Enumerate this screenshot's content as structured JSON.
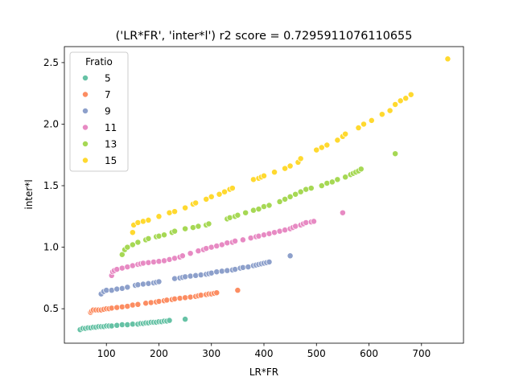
{
  "chart_data": {
    "type": "scatter",
    "title": "('LR*FR', 'inter*l') r2 score = 0.7295911076110655",
    "xlabel": "LR*FR",
    "ylabel": "inter*l",
    "xlim": [
      20,
      780
    ],
    "ylim": [
      0.22,
      2.63
    ],
    "xticks": [
      100,
      200,
      300,
      400,
      500,
      600,
      700
    ],
    "yticks": [
      0.5,
      1.0,
      1.5,
      2.0,
      2.5
    ],
    "xtick_labels": [
      "100",
      "200",
      "300",
      "400",
      "500",
      "600",
      "700"
    ],
    "ytick_labels": [
      "0.5",
      "1.0",
      "1.5",
      "2.0",
      "2.5"
    ],
    "grid": false,
    "legend": {
      "title": "Fratio",
      "placement": "top-left"
    },
    "series": [
      {
        "name": "5",
        "color": "#66c2a5",
        "x": [
          50,
          55,
          60,
          65,
          70,
          75,
          80,
          85,
          90,
          95,
          100,
          105,
          110,
          120,
          130,
          140,
          150,
          160,
          165,
          170,
          175,
          180,
          185,
          190,
          195,
          200,
          205,
          210,
          215,
          220,
          250
        ],
        "y": [
          0.33,
          0.34,
          0.34,
          0.345,
          0.345,
          0.35,
          0.35,
          0.355,
          0.355,
          0.355,
          0.36,
          0.36,
          0.36,
          0.365,
          0.37,
          0.37,
          0.375,
          0.375,
          0.38,
          0.38,
          0.385,
          0.385,
          0.39,
          0.39,
          0.39,
          0.395,
          0.395,
          0.4,
          0.4,
          0.405,
          0.415
        ]
      },
      {
        "name": "7",
        "color": "#fc8d62",
        "x": [
          70,
          72,
          75,
          80,
          85,
          90,
          95,
          100,
          105,
          110,
          120,
          130,
          140,
          150,
          160,
          175,
          185,
          195,
          200,
          210,
          215,
          225,
          230,
          240,
          250,
          260,
          270,
          275,
          280,
          290,
          295,
          300,
          305,
          310,
          350
        ],
        "y": [
          0.47,
          0.48,
          0.49,
          0.49,
          0.49,
          0.49,
          0.495,
          0.5,
          0.5,
          0.505,
          0.51,
          0.515,
          0.52,
          0.53,
          0.535,
          0.545,
          0.55,
          0.555,
          0.56,
          0.565,
          0.57,
          0.575,
          0.58,
          0.585,
          0.59,
          0.595,
          0.6,
          0.605,
          0.61,
          0.615,
          0.62,
          0.62,
          0.625,
          0.63,
          0.65
        ]
      },
      {
        "name": "9",
        "color": "#8da0cb",
        "x": [
          90,
          95,
          100,
          110,
          120,
          130,
          140,
          155,
          160,
          170,
          180,
          190,
          195,
          200,
          230,
          240,
          245,
          250,
          260,
          270,
          280,
          290,
          295,
          300,
          310,
          320,
          330,
          340,
          345,
          355,
          360,
          370,
          380,
          385,
          390,
          395,
          400,
          405,
          410,
          450
        ],
        "y": [
          0.62,
          0.64,
          0.65,
          0.65,
          0.66,
          0.665,
          0.675,
          0.69,
          0.695,
          0.7,
          0.705,
          0.71,
          0.715,
          0.72,
          0.745,
          0.75,
          0.755,
          0.76,
          0.765,
          0.77,
          0.775,
          0.78,
          0.785,
          0.79,
          0.8,
          0.805,
          0.81,
          0.815,
          0.82,
          0.83,
          0.835,
          0.84,
          0.85,
          0.855,
          0.86,
          0.865,
          0.87,
          0.875,
          0.88,
          0.93
        ]
      },
      {
        "name": "11",
        "color": "#e78ac3",
        "x": [
          110,
          112,
          115,
          120,
          130,
          140,
          150,
          160,
          165,
          170,
          180,
          190,
          200,
          210,
          220,
          230,
          240,
          245,
          260,
          275,
          285,
          290,
          300,
          310,
          320,
          330,
          340,
          345,
          360,
          375,
          385,
          390,
          400,
          410,
          420,
          430,
          440,
          450,
          455,
          460,
          470,
          475,
          480,
          490,
          495,
          550
        ],
        "y": [
          0.77,
          0.8,
          0.81,
          0.82,
          0.83,
          0.84,
          0.85,
          0.86,
          0.865,
          0.87,
          0.875,
          0.88,
          0.885,
          0.89,
          0.9,
          0.91,
          0.92,
          0.93,
          0.95,
          0.97,
          0.98,
          0.99,
          1.0,
          1.01,
          1.02,
          1.035,
          1.04,
          1.05,
          1.06,
          1.075,
          1.085,
          1.09,
          1.1,
          1.11,
          1.12,
          1.13,
          1.14,
          1.15,
          1.16,
          1.17,
          1.18,
          1.19,
          1.2,
          1.205,
          1.21,
          1.28
        ]
      },
      {
        "name": "13",
        "color": "#a6d854",
        "x": [
          130,
          135,
          140,
          150,
          160,
          175,
          180,
          195,
          200,
          210,
          225,
          230,
          250,
          265,
          275,
          290,
          295,
          330,
          335,
          345,
          350,
          365,
          380,
          390,
          400,
          410,
          430,
          440,
          450,
          460,
          470,
          480,
          490,
          510,
          520,
          530,
          540,
          555,
          565,
          570,
          575,
          580,
          585,
          650
        ],
        "y": [
          0.94,
          0.98,
          1.0,
          1.02,
          1.04,
          1.06,
          1.07,
          1.085,
          1.09,
          1.1,
          1.12,
          1.13,
          1.15,
          1.16,
          1.17,
          1.18,
          1.19,
          1.23,
          1.24,
          1.25,
          1.26,
          1.28,
          1.3,
          1.31,
          1.33,
          1.34,
          1.37,
          1.39,
          1.41,
          1.43,
          1.45,
          1.47,
          1.48,
          1.5,
          1.52,
          1.53,
          1.55,
          1.57,
          1.59,
          1.6,
          1.61,
          1.62,
          1.635,
          1.76
        ]
      },
      {
        "name": "15",
        "color": "#ffd92f",
        "x": [
          150,
          152,
          160,
          170,
          180,
          200,
          220,
          230,
          250,
          265,
          270,
          290,
          300,
          315,
          325,
          335,
          340,
          380,
          390,
          395,
          400,
          420,
          440,
          450,
          465,
          470,
          500,
          510,
          520,
          540,
          550,
          555,
          580,
          590,
          605,
          625,
          640,
          650,
          660,
          670,
          680,
          750
        ],
        "y": [
          1.12,
          1.18,
          1.2,
          1.21,
          1.22,
          1.25,
          1.28,
          1.29,
          1.32,
          1.35,
          1.36,
          1.39,
          1.41,
          1.43,
          1.45,
          1.47,
          1.48,
          1.55,
          1.56,
          1.57,
          1.58,
          1.61,
          1.64,
          1.66,
          1.69,
          1.72,
          1.79,
          1.81,
          1.83,
          1.87,
          1.9,
          1.92,
          1.97,
          2.0,
          2.03,
          2.08,
          2.11,
          2.16,
          2.19,
          2.21,
          2.24,
          2.53
        ]
      }
    ]
  }
}
